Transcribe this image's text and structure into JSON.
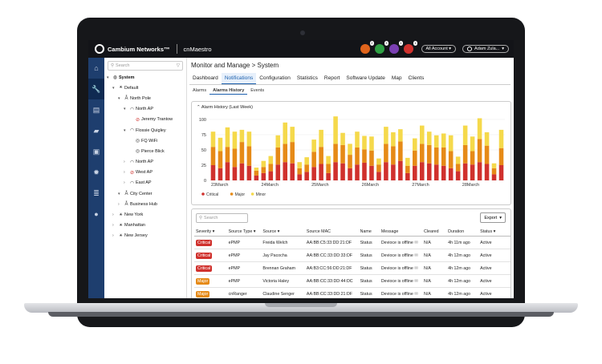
{
  "topbar": {
    "brand": "Cambium Networks™",
    "product": "cnMaestro",
    "alerts": [
      {
        "icon": "lock-alert-icon",
        "count": "2",
        "color": "#e0641c"
      },
      {
        "icon": "chat-alert-icon",
        "count": "3",
        "color": "#2ea043"
      },
      {
        "icon": "group-alert-icon",
        "count": "1",
        "color": "#7a3fb2"
      },
      {
        "icon": "bug-alert-icon",
        "count": "1",
        "color": "#d0312d"
      }
    ],
    "account": "All Account",
    "user": "Adam Zula..."
  },
  "tree": {
    "search_placeholder": "Search",
    "nodes": [
      {
        "label": "System",
        "icon": "globe-icon"
      },
      {
        "label": "Default",
        "icon": "network-icon"
      },
      {
        "label": "North Pole",
        "icon": "tower-icon"
      },
      {
        "label": "North AP",
        "icon": "wifi-icon"
      },
      {
        "label": "Jeremy Trantow",
        "icon": "wifi-off-icon"
      },
      {
        "label": "Flossie Quigley",
        "icon": "wifi-icon"
      },
      {
        "label": "FQ WiFi",
        "icon": "access-point-icon"
      },
      {
        "label": "Pierce Blick",
        "icon": "access-point-icon"
      },
      {
        "label": "North AP",
        "icon": "wifi-icon"
      },
      {
        "label": "West AP",
        "icon": "wifi-off-icon"
      },
      {
        "label": "East AP",
        "icon": "wifi-icon"
      },
      {
        "label": "City Center",
        "icon": "tower-icon"
      },
      {
        "label": "Business Hub",
        "icon": "tower-icon"
      },
      {
        "label": "New York",
        "icon": "network-icon"
      },
      {
        "label": "Manhattan",
        "icon": "network-icon"
      },
      {
        "label": "New Jersey",
        "icon": "network-icon"
      }
    ]
  },
  "main": {
    "title": "Monitor and Manage > System",
    "tabs": [
      "Dashboard",
      "Notifications",
      "Configuration",
      "Statistics",
      "Report",
      "Software Update",
      "Map",
      "Clients"
    ],
    "subtabs": [
      "Alarms",
      "Alarms History",
      "Events"
    ],
    "chart_title": "Alarm History (Last Week)",
    "search_placeholder": "Search",
    "export_label": "Export"
  },
  "chart_data": {
    "type": "bar",
    "title": "Alarm History (Last Week)",
    "stacked": true,
    "ylim": [
      0,
      100
    ],
    "yticks": [
      0,
      25,
      50,
      75,
      100
    ],
    "xticks": [
      "23March",
      "24March",
      "25March",
      "26March",
      "27March",
      "28March"
    ],
    "legend_position": "bottom-left",
    "series": [
      {
        "name": "Critical",
        "color": "#d0312d",
        "values": [
          25,
          20,
          30,
          22,
          28,
          24,
          8,
          12,
          15,
          26,
          30,
          28,
          10,
          14,
          22,
          27,
          12,
          30,
          28,
          20,
          26,
          29,
          24,
          14,
          30,
          26,
          32,
          12,
          24,
          30,
          28,
          26,
          24,
          20,
          15,
          28,
          26,
          30,
          27,
          10,
          25
        ]
      },
      {
        "name": "Major",
        "color": "#e68a17",
        "values": [
          30,
          28,
          25,
          30,
          35,
          32,
          8,
          10,
          12,
          28,
          30,
          35,
          10,
          12,
          25,
          28,
          15,
          30,
          30,
          22,
          28,
          22,
          25,
          12,
          30,
          30,
          32,
          12,
          25,
          30,
          30,
          28,
          30,
          28,
          12,
          30,
          22,
          38,
          30,
          10,
          28
        ]
      },
      {
        "name": "Minor",
        "color": "#f5d94b",
        "values": [
          25,
          22,
          32,
          28,
          20,
          24,
          5,
          10,
          13,
          20,
          35,
          25,
          10,
          12,
          20,
          28,
          13,
          45,
          20,
          18,
          26,
          22,
          23,
          10,
          28,
          23,
          20,
          13,
          20,
          30,
          22,
          20,
          23,
          26,
          12,
          32,
          24,
          34,
          22,
          8,
          30
        ]
      }
    ]
  },
  "table": {
    "headers": [
      "Severity",
      "Source Type",
      "Source",
      "Source MAC",
      "Name",
      "Message",
      "Cleared",
      "Duration",
      "Status"
    ],
    "rows": [
      {
        "severity": "Critical",
        "source_type": "ePMP",
        "source": "Freida Welch",
        "mac": "AA:BB:C5:33:DD:21:DF",
        "name": "Status",
        "message": "Devioce is offline",
        "cleared": "N/A",
        "duration": "4h 11m ago",
        "status": "Active"
      },
      {
        "severity": "Critical",
        "source_type": "ePMP",
        "source": "Jay Pacocha",
        "mac": "AA:BB:CC:33:DD:33:DF",
        "name": "Status",
        "message": "Devioce is offline",
        "cleared": "N/A",
        "duration": "4h 12m ago",
        "status": "Active"
      },
      {
        "severity": "Critical",
        "source_type": "ePMP",
        "source": "Brennan Graham",
        "mac": "AA:B3:CC:56:DD:21:DF",
        "name": "Status",
        "message": "Devioce is offline",
        "cleared": "N/A",
        "duration": "4h 12m ago",
        "status": "Active"
      },
      {
        "severity": "Major",
        "source_type": "ePMP",
        "source": "Victoria Haley",
        "mac": "AA:BB:CC:33:DD:44:DC",
        "name": "Status",
        "message": "Devioce is offline",
        "cleared": "N/A",
        "duration": "4h 12m ago",
        "status": "Active"
      },
      {
        "severity": "Major",
        "source_type": "cnRanger",
        "source": "Claudine Senger",
        "mac": "AA:BB:CC:33:DD:21:DF",
        "name": "Status",
        "message": "Devioce is offline",
        "cleared": "N/A",
        "duration": "4h 12m ago",
        "status": "Active"
      }
    ]
  }
}
